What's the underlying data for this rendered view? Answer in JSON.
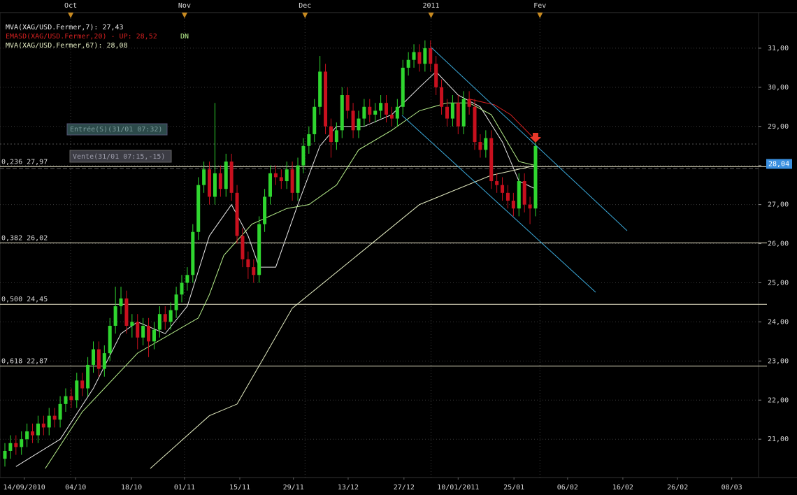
{
  "chart_data": {
    "type": "candlestick",
    "open": [
      20.5,
      20.7,
      20.9,
      20.8,
      21.0,
      21.2,
      21.1,
      21.4,
      21.3,
      21.6,
      21.5,
      21.9,
      22.1,
      22.0,
      22.5,
      22.3,
      22.9,
      23.3,
      22.8,
      23.2,
      23.9,
      24.4,
      24.6,
      23.9,
      24.0,
      23.6,
      23.9,
      23.5,
      23.8,
      24.2,
      24.0,
      24.3,
      24.7,
      25.0,
      25.2,
      26.3,
      27.5,
      27.9,
      27.2,
      27.8,
      27.4,
      28.1,
      27.3,
      26.2,
      25.6,
      25.4,
      25.2,
      26.5,
      27.2,
      27.8,
      27.7,
      27.6,
      27.9,
      27.3,
      28.0,
      28.5,
      28.8,
      29.5,
      30.4,
      29.0,
      28.6,
      28.9,
      29.8,
      29.4,
      28.9,
      29.2,
      29.5,
      29.3,
      29.4,
      29.6,
      29.3,
      29.2,
      29.5,
      30.5,
      30.7,
      30.9,
      30.6,
      31.0,
      30.6,
      30.0,
      29.5,
      29.2,
      29.6,
      29.0,
      29.7,
      29.5,
      28.6,
      28.4,
      28.7,
      27.6,
      27.5,
      27.3,
      27.1,
      26.9,
      27.6,
      27.0,
      26.9
    ],
    "high": [
      20.9,
      21.1,
      21.1,
      21.2,
      21.4,
      21.4,
      21.6,
      21.6,
      21.8,
      21.8,
      22.1,
      22.3,
      22.3,
      22.7,
      22.7,
      23.1,
      23.5,
      23.5,
      23.4,
      24.1,
      24.9,
      24.9,
      24.8,
      24.2,
      24.2,
      24.1,
      24.1,
      24.0,
      24.4,
      24.4,
      24.5,
      24.9,
      25.2,
      25.4,
      26.5,
      27.7,
      28.1,
      28.1,
      29.6,
      28.0,
      28.3,
      28.3,
      27.5,
      26.4,
      25.8,
      25.6,
      26.7,
      27.4,
      28.0,
      28.0,
      27.9,
      28.1,
      28.1,
      28.2,
      28.7,
      29.0,
      29.7,
      30.8,
      30.6,
      29.2,
      29.1,
      30.0,
      30.0,
      29.6,
      29.4,
      29.7,
      29.7,
      29.6,
      29.8,
      29.8,
      29.5,
      29.7,
      30.7,
      30.9,
      31.1,
      31.1,
      31.2,
      31.2,
      30.8,
      30.2,
      29.7,
      29.8,
      29.8,
      29.9,
      29.9,
      29.7,
      28.8,
      28.9,
      28.9,
      27.8,
      27.7,
      27.5,
      27.3,
      27.8,
      27.8,
      27.2,
      28.6
    ],
    "low": [
      20.3,
      20.5,
      20.6,
      20.6,
      20.8,
      20.9,
      20.9,
      21.1,
      21.1,
      21.3,
      21.3,
      21.7,
      21.8,
      21.8,
      22.1,
      22.1,
      22.7,
      22.6,
      22.6,
      23.0,
      23.7,
      24.2,
      23.7,
      23.6,
      23.3,
      23.4,
      23.1,
      23.3,
      23.6,
      23.8,
      23.8,
      24.1,
      24.5,
      24.8,
      25.0,
      26.1,
      27.3,
      27.0,
      27.0,
      27.2,
      27.2,
      27.1,
      26.0,
      25.4,
      25.1,
      25.0,
      25.0,
      26.3,
      27.0,
      27.5,
      27.4,
      27.4,
      27.1,
      27.1,
      27.8,
      28.3,
      28.6,
      29.3,
      28.8,
      28.2,
      28.4,
      28.7,
      29.2,
      28.7,
      28.7,
      29.0,
      29.1,
      29.1,
      29.2,
      29.1,
      29.0,
      29.0,
      29.3,
      30.3,
      30.5,
      30.4,
      30.4,
      30.4,
      29.8,
      29.3,
      29.0,
      29.0,
      28.8,
      28.8,
      29.3,
      28.4,
      28.2,
      28.2,
      27.4,
      27.3,
      27.1,
      26.9,
      26.7,
      26.7,
      26.8,
      26.5,
      26.7
    ],
    "close": [
      20.7,
      20.9,
      20.8,
      21.0,
      21.2,
      21.1,
      21.4,
      21.3,
      21.6,
      21.5,
      21.9,
      22.1,
      22.0,
      22.5,
      22.3,
      22.9,
      23.3,
      22.8,
      23.2,
      23.9,
      24.4,
      24.6,
      23.9,
      24.0,
      23.6,
      23.9,
      23.5,
      23.8,
      24.2,
      24.0,
      24.3,
      24.7,
      25.0,
      25.2,
      26.3,
      27.5,
      27.9,
      27.2,
      27.8,
      27.4,
      28.1,
      27.3,
      26.2,
      25.6,
      25.4,
      25.2,
      26.5,
      27.2,
      27.8,
      27.7,
      27.6,
      27.9,
      27.3,
      28.0,
      28.5,
      28.8,
      29.5,
      30.4,
      29.0,
      28.6,
      28.9,
      29.8,
      29.4,
      28.9,
      29.2,
      29.5,
      29.3,
      29.4,
      29.6,
      29.3,
      29.2,
      29.5,
      30.5,
      30.7,
      30.9,
      30.6,
      31.0,
      30.6,
      30.0,
      29.5,
      29.2,
      29.6,
      29.0,
      29.7,
      29.5,
      28.6,
      28.4,
      28.7,
      27.6,
      27.5,
      27.3,
      27.1,
      26.9,
      27.6,
      27.0,
      26.9,
      28.5
    ],
    "up_color": "#2fd62f",
    "down_color": "#c8101e",
    "series": [
      {
        "name": "MVA(XAG/USD.Fermer,7): 27,43",
        "color": "#e8e8e8",
        "x": [
          2,
          10,
          16,
          21,
          24,
          29,
          33,
          37,
          41,
          44,
          46,
          49,
          53,
          57,
          60,
          65,
          70,
          75,
          78,
          82,
          86,
          90,
          93,
          96
        ],
        "values": [
          20.3,
          21.0,
          22.3,
          23.7,
          24.0,
          23.7,
          24.4,
          26.2,
          27.0,
          26.2,
          25.4,
          25.4,
          27.0,
          28.5,
          29.0,
          29.0,
          29.3,
          30.0,
          30.4,
          29.8,
          29.5,
          28.6,
          27.6,
          27.4
        ]
      },
      {
        "name": "EMASD(XAG/USD.Fermer,20) - UP: 28,52",
        "color": "#d42020",
        "x": [
          84,
          88.6,
          91.5,
          96
        ],
        "values": [
          29.7,
          29.55,
          29.3,
          28.65
        ]
      },
      {
        "name": "DN",
        "color": "#b8f08c",
        "x": [
          7.3,
          14,
          24,
          35,
          37,
          39.6,
          44.7,
          51,
          55,
          60,
          64,
          70,
          75,
          80,
          84,
          88,
          93,
          96
        ],
        "values": [
          20.25,
          21.7,
          23.2,
          24.1,
          24.7,
          25.7,
          26.5,
          26.9,
          27.0,
          27.5,
          28.4,
          28.9,
          29.4,
          29.6,
          29.6,
          29.3,
          28.1,
          28.0
        ]
      },
      {
        "name": "MVA(XAG/USD.Fermer,67): 28,08",
        "color": "#e6eec4",
        "x": [
          26.3,
          37,
          42,
          52,
          62,
          75,
          88,
          96
        ],
        "values": [
          20.25,
          21.6,
          21.9,
          24.35,
          25.5,
          27.0,
          27.75,
          28.0
        ]
      }
    ],
    "xlim": [
      -0.885,
      136.35
    ],
    "xticks": [
      {
        "value": 3.5,
        "label": "14/09/2010"
      },
      {
        "value": 12.8,
        "label": "04/10"
      },
      {
        "value": 22.9,
        "label": "18/10"
      },
      {
        "value": 32.5,
        "label": "01/11"
      },
      {
        "value": 42.5,
        "label": "15/11"
      },
      {
        "value": 52.2,
        "label": "29/11"
      },
      {
        "value": 62.1,
        "label": "13/12"
      },
      {
        "value": 72.2,
        "label": "27/12"
      },
      {
        "value": 82,
        "label": "10/01/2011"
      },
      {
        "value": 92.1,
        "label": "25/01"
      },
      {
        "value": 101.8,
        "label": "06/02"
      },
      {
        "value": 111.8,
        "label": "16/02"
      },
      {
        "value": 121.7,
        "label": "26/02"
      },
      {
        "value": 131.5,
        "label": "08/03"
      }
    ],
    "x2ticks": [
      {
        "value": 11.9,
        "label": "Oct"
      },
      {
        "value": 32.5,
        "label": "Nov"
      },
      {
        "value": 54.3,
        "label": "Dec"
      },
      {
        "value": 77.1,
        "label": "2011"
      },
      {
        "value": 96.8,
        "label": "Fev"
      }
    ],
    "ylim": [
      20.02,
      31.91
    ],
    "yticks": [
      {
        "value": 21,
        "label": "21,00"
      },
      {
        "value": 22,
        "label": "22,00"
      },
      {
        "value": 23,
        "label": "23,00"
      },
      {
        "value": 24,
        "label": "24,00"
      },
      {
        "value": 25,
        "label": "25,00"
      },
      {
        "value": 26,
        "label": "26,00"
      },
      {
        "value": 27,
        "label": "27,00"
      },
      {
        "value": 28,
        "label": "28,00"
      },
      {
        "value": 29,
        "label": "29,00"
      },
      {
        "value": 30,
        "label": "30,00"
      },
      {
        "value": 31,
        "label": "31,00"
      }
    ],
    "fib_levels": [
      {
        "value": 27.97,
        "label": "0,236 27,97"
      },
      {
        "value": 26.02,
        "label": "0,382 26,02"
      },
      {
        "value": 24.45,
        "label": "0,500 24,45"
      },
      {
        "value": 22.87,
        "label": "0,618 22,87"
      }
    ],
    "last_price": {
      "value": 28.04,
      "label": "28,04"
    },
    "orders": [
      "Entrée(S)(31/01 07:32)",
      "Vente(31/01 07:15,-15)"
    ],
    "grid": true
  }
}
